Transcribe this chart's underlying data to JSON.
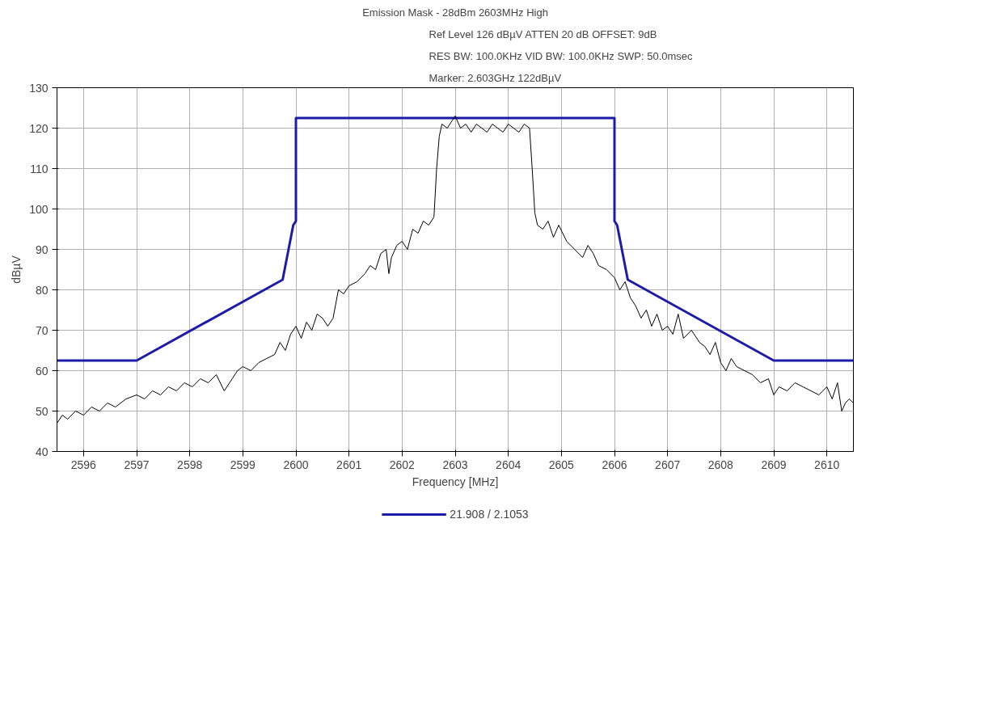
{
  "chart_data": {
    "type": "line",
    "title": "Emission Mask - 28dBm 2603MHz High",
    "annotations": [
      "Ref Level 126 dBµV     ATTEN 20 dB    OFFSET: 9dB",
      "RES BW: 100.0KHz  VID BW: 100.0KHz  SWP: 50.0msec",
      "Marker: 2.603GHz  122dBµV"
    ],
    "xlabel": "Frequency [MHz]",
    "ylabel": "dBµV",
    "xlim": [
      2595.5,
      2610.5
    ],
    "ylim": [
      40,
      130
    ],
    "xticks": [
      2596,
      2597,
      2598,
      2599,
      2600,
      2601,
      2602,
      2603,
      2604,
      2605,
      2606,
      2607,
      2608,
      2609,
      2610
    ],
    "yticks": [
      40,
      50,
      60,
      70,
      80,
      90,
      100,
      110,
      120,
      130
    ],
    "grid": true,
    "legend": "bottom",
    "marker": "none",
    "line_style": "solid",
    "series": [
      {
        "name": "21.908 / 2.1053",
        "color": "#1c1ca8",
        "x": [
          2595.5,
          2597,
          2599.75,
          2599.95,
          2600,
          2600,
          2606,
          2606,
          2606.05,
          2606.25,
          2609,
          2610.5
        ],
        "values": [
          62.5,
          62.5,
          82.5,
          96,
          97,
          122.5,
          122.5,
          97,
          96,
          82.5,
          62.5,
          62.5
        ]
      },
      {
        "color": "#000000",
        "x": [
          2595.5,
          2595.6,
          2595.7,
          2595.85,
          2596,
          2596.15,
          2596.3,
          2596.45,
          2596.6,
          2596.8,
          2597,
          2597.15,
          2597.3,
          2597.45,
          2597.6,
          2597.75,
          2597.9,
          2598.05,
          2598.2,
          2598.35,
          2598.5,
          2598.65,
          2598.8,
          2598.9,
          2599,
          2599.15,
          2599.3,
          2599.45,
          2599.6,
          2599.7,
          2599.8,
          2599.9,
          2600,
          2600.1,
          2600.2,
          2600.3,
          2600.4,
          2600.5,
          2600.6,
          2600.7,
          2600.8,
          2600.9,
          2601,
          2601.15,
          2601.3,
          2601.4,
          2601.5,
          2601.6,
          2601.7,
          2601.75,
          2601.8,
          2601.9,
          2602,
          2602.1,
          2602.2,
          2602.3,
          2602.4,
          2602.5,
          2602.6,
          2602.65,
          2602.7,
          2602.75,
          2602.85,
          2602.95,
          2603,
          2603.1,
          2603.2,
          2603.3,
          2603.4,
          2603.5,
          2603.6,
          2603.7,
          2603.8,
          2603.9,
          2604,
          2604.1,
          2604.2,
          2604.3,
          2604.4,
          2604.45,
          2604.5,
          2604.55,
          2604.65,
          2604.75,
          2604.85,
          2604.95,
          2605.1,
          2605.25,
          2605.4,
          2605.5,
          2605.6,
          2605.7,
          2605.85,
          2606,
          2606.1,
          2606.2,
          2606.3,
          2606.4,
          2606.5,
          2606.6,
          2606.7,
          2606.8,
          2606.9,
          2607,
          2607.1,
          2607.2,
          2607.3,
          2607.45,
          2607.6,
          2607.7,
          2607.8,
          2607.9,
          2608,
          2608.1,
          2608.2,
          2608.3,
          2608.45,
          2608.6,
          2608.75,
          2608.9,
          2609,
          2609.1,
          2609.25,
          2609.4,
          2609.55,
          2609.7,
          2609.85,
          2610,
          2610.1,
          2610.2,
          2610.28,
          2610.35,
          2610.42,
          2610.5
        ],
        "values": [
          47,
          49,
          48,
          50,
          49,
          51,
          50,
          52,
          51,
          53,
          54,
          53,
          55,
          54,
          56,
          55,
          57,
          56,
          58,
          57,
          59,
          55,
          58,
          60,
          61,
          60,
          62,
          63,
          64,
          67,
          65,
          69,
          71,
          68,
          72,
          70,
          74,
          73,
          71,
          73,
          80,
          79,
          81,
          82,
          84,
          86,
          85,
          89,
          90,
          84,
          88,
          91,
          92,
          90,
          95,
          94,
          97,
          96,
          98,
          110,
          118,
          121,
          120,
          122,
          123,
          120,
          121,
          119,
          121,
          120,
          119,
          121,
          120,
          119,
          121,
          120,
          119,
          121,
          120,
          110,
          99,
          96,
          95,
          97,
          93,
          96,
          92,
          90,
          88,
          91,
          89,
          86,
          85,
          83,
          80,
          82,
          78,
          76,
          73,
          75,
          71,
          74,
          70,
          71,
          69,
          74,
          68,
          70,
          67,
          66,
          64,
          67,
          62,
          60,
          63,
          61,
          60,
          59,
          57,
          58,
          54,
          56,
          55,
          57,
          56,
          55,
          54,
          56,
          53,
          57,
          50,
          52,
          53,
          52
        ]
      }
    ]
  }
}
